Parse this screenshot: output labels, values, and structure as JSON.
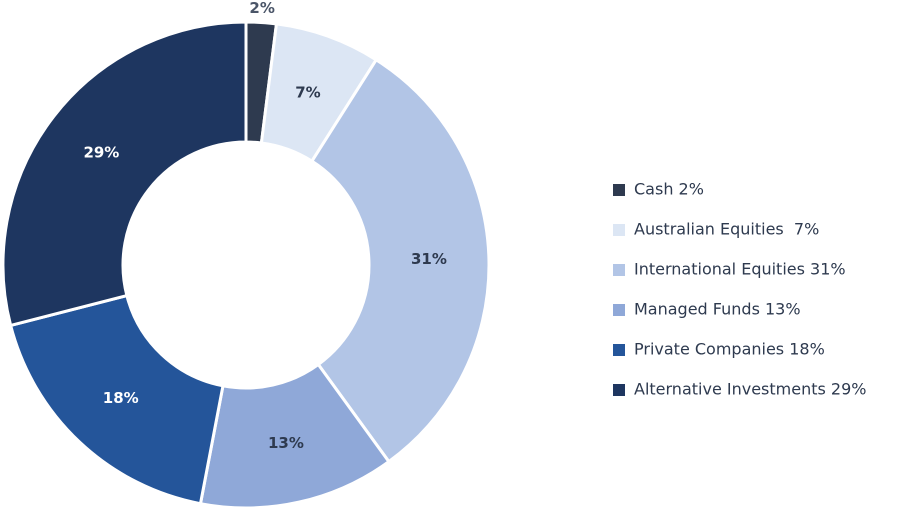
{
  "chart_data": {
    "type": "pie",
    "categories": [
      "Cash 2%",
      "Australian Equities  7%",
      "International Equities 31%",
      "Managed Funds 13%",
      "Private Companies 18%",
      "Alternative Investments 29%"
    ],
    "values": [
      2,
      7,
      31,
      13,
      18,
      29
    ],
    "value_labels": [
      "2%",
      "7%",
      "31%",
      "13%",
      "18%",
      "29%"
    ],
    "colors": [
      "#2e3a4f",
      "#dce6f4",
      "#b2c5e6",
      "#8fa8d8",
      "#24559a",
      "#1e3660"
    ]
  }
}
